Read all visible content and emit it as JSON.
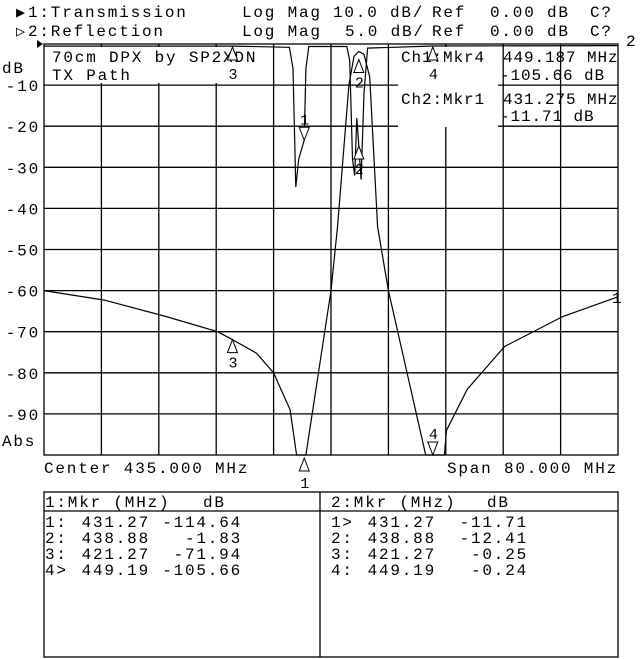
{
  "header": {
    "ch1": {
      "pointer": "▶",
      "label": "1:Transmission",
      "format": "Log Mag",
      "scale": "10.0 dB/",
      "ref_label": "Ref",
      "ref_value": "0.00 dB",
      "cal": "C?"
    },
    "ch2": {
      "pointer": "▷",
      "label": "2:Reflection",
      "format": "Log Mag",
      "scale": "5.0 dB/",
      "ref_label": "Ref",
      "ref_value": "0.00 dB",
      "cal": "C?"
    }
  },
  "chart_data": {
    "type": "line",
    "title_lines": [
      "70cm DPX by SP2XDN",
      "TX Path"
    ],
    "ylabel_top": "dB",
    "ylabel_bottom": "Abs",
    "yticks": [
      "-10",
      "-20",
      "-30",
      "-40",
      "-50",
      "-60",
      "-70",
      "-80",
      "-90"
    ],
    "x_center_label": "Center 435.000 MHz",
    "x_span_label": "Span 80.000 MHz",
    "xlim_mhz": [
      395,
      475
    ],
    "grid": true,
    "grid_divisions": {
      "x": 10,
      "y": 10
    },
    "series": [
      {
        "name": "1",
        "ref_db": 0,
        "db_per_div": 10,
        "points_mhz_db": [
          [
            395,
            -60
          ],
          [
            403.4,
            -62.3
          ],
          [
            412,
            -66.3
          ],
          [
            419.2,
            -70
          ],
          [
            421.27,
            -71.94
          ],
          [
            424.6,
            -75.2
          ],
          [
            427,
            -80
          ],
          [
            429.3,
            -89
          ],
          [
            430.2,
            -100
          ],
          [
            431.5,
            -100
          ],
          [
            435,
            -60
          ],
          [
            435.9,
            -44.5
          ],
          [
            437.5,
            -10
          ],
          [
            438.2,
            -3
          ],
          [
            438.88,
            -1.83
          ],
          [
            439.6,
            -2.5
          ],
          [
            440.4,
            -8
          ],
          [
            441.5,
            -44.5
          ],
          [
            443,
            -60
          ],
          [
            448.2,
            -100
          ],
          [
            450.8,
            -100
          ],
          [
            451.1,
            -94
          ],
          [
            454,
            -84
          ],
          [
            459.2,
            -73.6
          ],
          [
            467.3,
            -66.3
          ],
          [
            475,
            -61.5
          ]
        ]
      },
      {
        "name": "2",
        "ref_db": 0,
        "db_per_div": 5,
        "points_mhz_db": [
          [
            395,
            -0.25
          ],
          [
            421.27,
            -0.25
          ],
          [
            429.2,
            -0.4
          ],
          [
            429.7,
            -3
          ],
          [
            430.1,
            -17.4
          ],
          [
            430.5,
            -14
          ],
          [
            431.27,
            -11.71
          ],
          [
            431.5,
            -3
          ],
          [
            431.9,
            -0.3
          ],
          [
            437.2,
            -0.3
          ],
          [
            437.6,
            -2
          ],
          [
            438.0,
            -14
          ],
          [
            438.3,
            -16
          ],
          [
            438.6,
            -9
          ],
          [
            438.88,
            -12.41
          ],
          [
            439.2,
            -16.5
          ],
          [
            439.6,
            -6
          ],
          [
            440.1,
            -0.5
          ],
          [
            449.19,
            -0.24
          ],
          [
            475,
            -0.2
          ]
        ]
      }
    ],
    "markers": {
      "ch1": [
        {
          "id": "1",
          "mhz": 431.27,
          "db": -114.64
        },
        {
          "id": "2",
          "mhz": 438.88,
          "db": -1.83
        },
        {
          "id": "3",
          "mhz": 421.27,
          "db": -71.94
        },
        {
          "id": "4",
          "mhz": 449.19,
          "db": -105.66
        }
      ],
      "ch2": [
        {
          "id": "1",
          "mhz": 431.27,
          "db": -11.71
        },
        {
          "id": "2",
          "mhz": 438.88,
          "db": -12.41
        },
        {
          "id": "3",
          "mhz": 421.27,
          "db": -0.25
        },
        {
          "id": "4",
          "mhz": 449.19,
          "db": -0.24
        }
      ]
    }
  },
  "readout": {
    "r1_label": "Ch1:Mkr4",
    "r1_freq": "449.187 MHz",
    "r1_val": "-105.66 dB",
    "r2_label": "Ch2:Mkr1",
    "r2_freq": "431.275 MHz",
    "r2_val": "-11.71 dB",
    "trace_end_1": "1",
    "trace_end_2": "2"
  },
  "table": {
    "ch1": {
      "head_mkr": "1:Mkr (MHz)",
      "head_db": "dB",
      "rows": [
        [
          "1:",
          "431.27",
          "-114.64"
        ],
        [
          "2:",
          "438.88",
          "-1.83"
        ],
        [
          "3:",
          "421.27",
          "-71.94"
        ],
        [
          "4>",
          "449.19",
          "-105.66"
        ]
      ]
    },
    "ch2": {
      "head_mkr": "2:Mkr (MHz)",
      "head_db": "dB",
      "rows": [
        [
          "1>",
          "431.27",
          "-11.71"
        ],
        [
          "2:",
          "438.88",
          "-12.41"
        ],
        [
          "3:",
          "421.27",
          "-0.25"
        ],
        [
          "4:",
          "449.19",
          "-0.24"
        ]
      ]
    }
  }
}
